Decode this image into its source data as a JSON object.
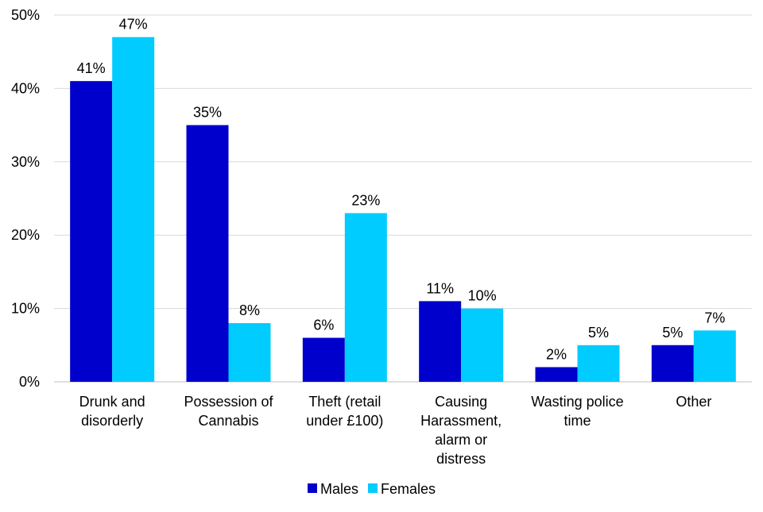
{
  "chart_data": {
    "type": "bar",
    "title": "",
    "xlabel": "",
    "ylabel": "",
    "ylim": [
      0,
      50
    ],
    "yticks": [
      "0%",
      "10%",
      "20%",
      "30%",
      "40%",
      "50%"
    ],
    "ytick_values": [
      0,
      10,
      20,
      30,
      40,
      50
    ],
    "grid": true,
    "legend_position": "bottom",
    "categories": [
      [
        "Drunk and",
        "disorderly"
      ],
      [
        "Possession of",
        "Cannabis"
      ],
      [
        "Theft (retail",
        "under £100)"
      ],
      [
        "Causing",
        "Harassment,",
        "alarm or",
        "distress"
      ],
      [
        "Wasting police",
        "time"
      ],
      [
        "Other"
      ]
    ],
    "series": [
      {
        "name": "Males",
        "color": "#0000CC",
        "values": [
          41,
          35,
          6,
          11,
          2,
          5
        ],
        "labels": [
          "41%",
          "35%",
          "6%",
          "11%",
          "2%",
          "5%"
        ]
      },
      {
        "name": "Females",
        "color": "#00CCFF",
        "values": [
          47,
          8,
          23,
          10,
          5,
          7
        ],
        "labels": [
          "47%",
          "8%",
          "23%",
          "10%",
          "5%",
          "7%"
        ]
      }
    ]
  }
}
